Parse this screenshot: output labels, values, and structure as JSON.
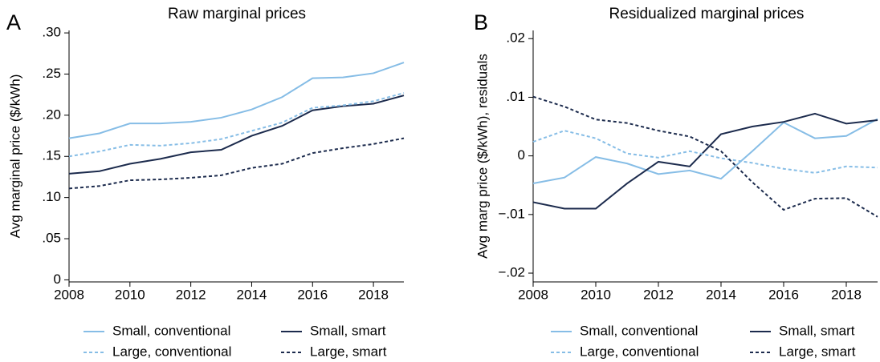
{
  "chart_data": [
    {
      "type": "line",
      "panel_label": "A",
      "title": "Raw marginal prices",
      "y_label": "Avg marginal price ($/kWh)",
      "x": [
        2008,
        2009,
        2010,
        2011,
        2012,
        2013,
        2014,
        2015,
        2016,
        2017,
        2018,
        2019
      ],
      "xlim": [
        2008,
        2019
      ],
      "xticks": [
        2008,
        2010,
        2012,
        2014,
        2016,
        2018
      ],
      "ylim": [
        -0.0025,
        0.303
      ],
      "yticks": [
        0,
        {
          "value": 0.05,
          "label": ".05"
        },
        {
          "value": 0.1,
          "label": ".10"
        },
        {
          "value": 0.15,
          "label": ".15"
        },
        {
          "value": 0.2,
          "label": ".20"
        },
        {
          "value": 0.25,
          "label": ".25"
        },
        {
          "value": 0.3,
          "label": ".30"
        }
      ],
      "legend": "bottom",
      "series": [
        {
          "name": "Small, conventional",
          "color": "#86bde6",
          "dash": false,
          "values": [
            0.172,
            0.178,
            0.19,
            0.19,
            0.192,
            0.197,
            0.207,
            0.222,
            0.245,
            0.246,
            0.251,
            0.264
          ]
        },
        {
          "name": "Small, smart",
          "color": "#1c2b4d",
          "dash": false,
          "values": [
            0.129,
            0.132,
            0.141,
            0.147,
            0.155,
            0.158,
            0.175,
            0.187,
            0.206,
            0.211,
            0.214,
            0.224
          ]
        },
        {
          "name": "Large, conventional",
          "color": "#86bde6",
          "dash": true,
          "values": [
            0.15,
            0.156,
            0.164,
            0.163,
            0.166,
            0.171,
            0.181,
            0.191,
            0.209,
            0.212,
            0.217,
            0.227
          ]
        },
        {
          "name": "Large, smart",
          "color": "#1c2b4d",
          "dash": true,
          "values": [
            0.111,
            0.114,
            0.121,
            0.122,
            0.124,
            0.127,
            0.136,
            0.141,
            0.154,
            0.16,
            0.165,
            0.172
          ]
        }
      ]
    },
    {
      "type": "line",
      "panel_label": "B",
      "title": "Residualized marginal prices",
      "y_label": "Avg marg price ($/kWh), residuals",
      "x": [
        2008,
        2009,
        2010,
        2011,
        2012,
        2013,
        2014,
        2015,
        2016,
        2017,
        2018,
        2019
      ],
      "xlim": [
        2008,
        2019
      ],
      "xticks": [
        2008,
        2010,
        2012,
        2014,
        2016,
        2018
      ],
      "ylim": [
        -0.0215,
        0.0214
      ],
      "yticks": [
        {
          "value": -0.02,
          "label": "−.02"
        },
        {
          "value": -0.01,
          "label": "−.01"
        },
        0,
        {
          "value": 0.01,
          "label": ".01"
        },
        {
          "value": 0.02,
          "label": ".02"
        }
      ],
      "legend": "bottom",
      "series": [
        {
          "name": "Small, conventional",
          "color": "#86bde6",
          "dash": false,
          "values": [
            -0.0047,
            -0.0037,
            -0.0002,
            -0.0013,
            -0.0031,
            -0.0025,
            -0.0039,
            0.0008,
            0.0057,
            0.003,
            0.0034,
            0.0063
          ]
        },
        {
          "name": "Small, smart",
          "color": "#1c2b4d",
          "dash": false,
          "values": [
            -0.0079,
            -0.009,
            -0.009,
            -0.0047,
            -0.001,
            -0.0018,
            0.0037,
            0.005,
            0.0058,
            0.0072,
            0.0055,
            0.0061
          ]
        },
        {
          "name": "Large, conventional",
          "color": "#86bde6",
          "dash": true,
          "values": [
            0.0024,
            0.0043,
            0.003,
            0.0004,
            -0.0003,
            0.0008,
            -0.0004,
            -0.0012,
            -0.0022,
            -0.0029,
            -0.0018,
            -0.002
          ]
        },
        {
          "name": "Large, smart",
          "color": "#1c2b4d",
          "dash": true,
          "values": [
            0.0101,
            0.0084,
            0.0062,
            0.0056,
            0.0043,
            0.0033,
            0.0008,
            -0.0045,
            -0.0092,
            -0.0073,
            -0.0072,
            -0.0104
          ]
        }
      ]
    }
  ]
}
